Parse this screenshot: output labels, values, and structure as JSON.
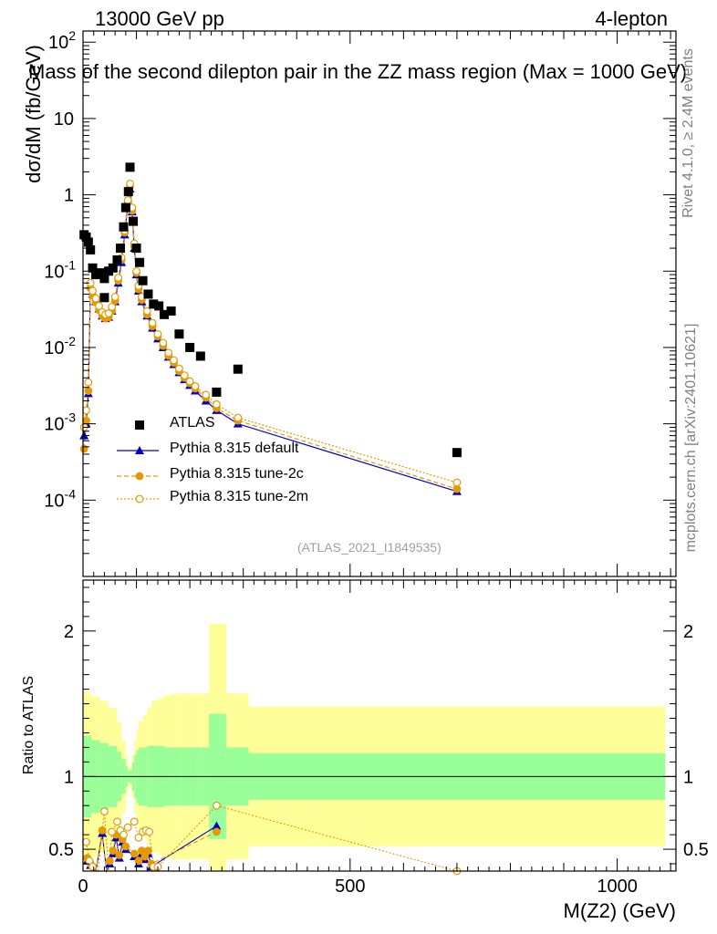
{
  "header": {
    "left": "13000 GeV pp",
    "right": "4-lepton"
  },
  "colors": {
    "data": "#000000",
    "default": "#0000cc",
    "tune2c": "#e69a00",
    "tune2m": "#e69a00",
    "band_inner": "#99ff99",
    "band_outer": "#ffff99",
    "watermark": "#808080"
  },
  "side_text": {
    "rivet": "Rivet 4.1.0, ≥ 2.4M events",
    "mcplots": "mcplots.cern.ch [arXiv:2401.10621]"
  },
  "chart_data": {
    "type": "scatter",
    "title": "Mass of the second dilepton pair in the ZZ mass region (Max = 1000 GeV)",
    "xlabel": "M(Z2) (GeV)",
    "ylabel": "dσ/dM (fb/GeV)",
    "ratio_ylabel": "Ratio to ATLAS",
    "analysis_id": "(ATLAS_2021_I1849535)",
    "xlim": [
      0,
      1110
    ],
    "ylim_log": [
      1e-05,
      140
    ],
    "ratio_ylim": [
      0.35,
      2.35
    ],
    "x_ticks": [
      "0",
      "500",
      "1000"
    ],
    "y_ticks": [
      "10^{-4}",
      "10^{-3}",
      "10^{-2}",
      "10^{-1}",
      "1",
      "10",
      "10^{2}"
    ],
    "ratio_ticks": [
      "0.5",
      "1",
      "2"
    ],
    "legend": [
      "ATLAS",
      "Pythia 8.315 default",
      "Pythia 8.315 tune-2c",
      "Pythia 8.315 tune-2m"
    ],
    "data_points": [
      {
        "x": 2,
        "y": 0.3
      },
      {
        "x": 6,
        "y": 0.28
      },
      {
        "x": 10,
        "y": 0.24
      },
      {
        "x": 14,
        "y": 0.19
      },
      {
        "x": 18,
        "y": 0.11
      },
      {
        "x": 24,
        "y": 0.09
      },
      {
        "x": 32,
        "y": 0.095
      },
      {
        "x": 40,
        "y": 0.08
      },
      {
        "x": 40,
        "y": 0.045
      },
      {
        "x": 48,
        "y": 0.1
      },
      {
        "x": 56,
        "y": 0.11
      },
      {
        "x": 64,
        "y": 0.14
      },
      {
        "x": 70,
        "y": 0.2
      },
      {
        "x": 76,
        "y": 0.38
      },
      {
        "x": 80,
        "y": 0.68
      },
      {
        "x": 85,
        "y": 1.1
      },
      {
        "x": 88,
        "y": 2.3
      },
      {
        "x": 94,
        "y": 0.45
      },
      {
        "x": 100,
        "y": 0.2
      },
      {
        "x": 106,
        "y": 0.13
      },
      {
        "x": 112,
        "y": 0.075
      },
      {
        "x": 122,
        "y": 0.05
      },
      {
        "x": 132,
        "y": 0.037
      },
      {
        "x": 142,
        "y": 0.035
      },
      {
        "x": 152,
        "y": 0.027
      },
      {
        "x": 165,
        "y": 0.03
      },
      {
        "x": 180,
        "y": 0.015
      },
      {
        "x": 200,
        "y": 0.01
      },
      {
        "x": 220,
        "y": 0.0077
      },
      {
        "x": 250,
        "y": 0.0026
      },
      {
        "x": 290,
        "y": 0.0052
      },
      {
        "x": 700,
        "y": 0.00042
      }
    ],
    "series": [
      {
        "name": "Pythia 8.315 default",
        "x": [
          2,
          6,
          10,
          14,
          18,
          24,
          30,
          36,
          42,
          48,
          54,
          60,
          66,
          72,
          78,
          84,
          88,
          92,
          96,
          100,
          104,
          110,
          120,
          130,
          140,
          150,
          160,
          170,
          180,
          190,
          200,
          210,
          230,
          250,
          290,
          700
        ],
        "y": [
          0.0007,
          0.001,
          0.0025,
          0.065,
          0.05,
          0.04,
          0.032,
          0.026,
          0.024,
          0.025,
          0.03,
          0.04,
          0.07,
          0.13,
          0.3,
          0.75,
          1.2,
          0.6,
          0.2,
          0.09,
          0.055,
          0.04,
          0.026,
          0.018,
          0.013,
          0.01,
          0.0075,
          0.006,
          0.0047,
          0.0038,
          0.0032,
          0.0027,
          0.002,
          0.0015,
          0.001,
          0.00013
        ]
      },
      {
        "name": "Pythia 8.315 tune-2c",
        "x": [
          2,
          6,
          10,
          14,
          18,
          24,
          30,
          36,
          42,
          48,
          54,
          60,
          66,
          72,
          78,
          84,
          88,
          92,
          96,
          100,
          104,
          110,
          120,
          130,
          140,
          150,
          160,
          170,
          180,
          190,
          200,
          210,
          230,
          250,
          290,
          700
        ],
        "y": [
          0.00047,
          0.0011,
          0.0027,
          0.06,
          0.048,
          0.039,
          0.031,
          0.026,
          0.024,
          0.025,
          0.03,
          0.041,
          0.075,
          0.14,
          0.32,
          0.8,
          1.3,
          0.62,
          0.21,
          0.095,
          0.058,
          0.042,
          0.027,
          0.019,
          0.014,
          0.0105,
          0.0078,
          0.0063,
          0.0049,
          0.004,
          0.0034,
          0.0029,
          0.0022,
          0.0016,
          0.0011,
          0.00014
        ]
      },
      {
        "name": "Pythia 8.315 tune-2m",
        "x": [
          2,
          6,
          10,
          14,
          18,
          24,
          30,
          36,
          42,
          48,
          54,
          60,
          66,
          72,
          78,
          84,
          88,
          92,
          96,
          100,
          104,
          110,
          120,
          130,
          140,
          150,
          160,
          170,
          180,
          190,
          200,
          210,
          230,
          250,
          290,
          700
        ],
        "y": [
          0.0009,
          0.0015,
          0.0035,
          0.07,
          0.055,
          0.044,
          0.035,
          0.029,
          0.027,
          0.028,
          0.034,
          0.046,
          0.082,
          0.15,
          0.34,
          0.85,
          1.4,
          0.68,
          0.23,
          0.1,
          0.064,
          0.046,
          0.03,
          0.021,
          0.015,
          0.0115,
          0.0085,
          0.0068,
          0.0053,
          0.0043,
          0.0036,
          0.0031,
          0.0024,
          0.0018,
          0.0012,
          0.00017
        ]
      }
    ],
    "ratio_band": {
      "edges": [
        0,
        16,
        32,
        48,
        64,
        72,
        80,
        84,
        88,
        92,
        96,
        100,
        104,
        112,
        120,
        128,
        140,
        152,
        168,
        184,
        200,
        220,
        236,
        268,
        310,
        1090
      ],
      "inner": [
        0.28,
        0.25,
        0.23,
        0.21,
        0.17,
        0.12,
        0.07,
        0.04,
        0.05,
        0.1,
        0.15,
        0.18,
        0.2,
        0.2,
        0.21,
        0.21,
        0.21,
        0.2,
        0.2,
        0.2,
        0.2,
        0.2,
        0.43,
        0.2,
        0.16
      ],
      "outer": [
        0.58,
        0.55,
        0.52,
        0.47,
        0.37,
        0.25,
        0.14,
        0.07,
        0.08,
        0.15,
        0.25,
        0.32,
        0.38,
        0.42,
        0.47,
        0.52,
        0.54,
        0.56,
        0.57,
        0.57,
        0.57,
        0.57,
        1.05,
        0.57,
        0.48
      ]
    },
    "ratio_series": [
      {
        "name": "Pythia 8.315 default",
        "x": [
          8,
          14,
          24,
          36,
          44,
          50,
          56,
          62,
          68,
          74,
          80,
          96,
          104,
          110,
          116,
          122,
          128,
          250
        ],
        "y": [
          0.42,
          0.39,
          0.3,
          0.61,
          0.3,
          0.4,
          0.47,
          0.58,
          0.44,
          0.55,
          0.5,
          0.45,
          0.4,
          0.47,
          0.43,
          0.47,
          0.38,
          0.66
        ]
      },
      {
        "name": "Pythia 8.315 tune-2c",
        "x": [
          8,
          14,
          24,
          36,
          44,
          50,
          56,
          62,
          68,
          74,
          80,
          96,
          104,
          110,
          116,
          122,
          128,
          250
        ],
        "y": [
          0.44,
          0.4,
          0.32,
          0.63,
          0.32,
          0.42,
          0.49,
          0.6,
          0.46,
          0.57,
          0.52,
          0.47,
          0.42,
          0.49,
          0.45,
          0.49,
          0.4,
          0.62
        ]
      },
      {
        "name": "Pythia 8.315 tune-2m",
        "x": [
          6,
          12,
          18,
          28,
          40,
          48,
          54,
          64,
          70,
          76,
          84,
          96,
          104,
          112,
          118,
          124,
          132,
          140,
          250,
          700
        ],
        "y": [
          0.55,
          0.42,
          0.38,
          0.32,
          0.76,
          0.34,
          0.62,
          0.69,
          0.63,
          0.6,
          0.65,
          0.69,
          0.58,
          0.62,
          0.63,
          0.62,
          0.38,
          0.38,
          0.8,
          0.35
        ]
      }
    ]
  }
}
